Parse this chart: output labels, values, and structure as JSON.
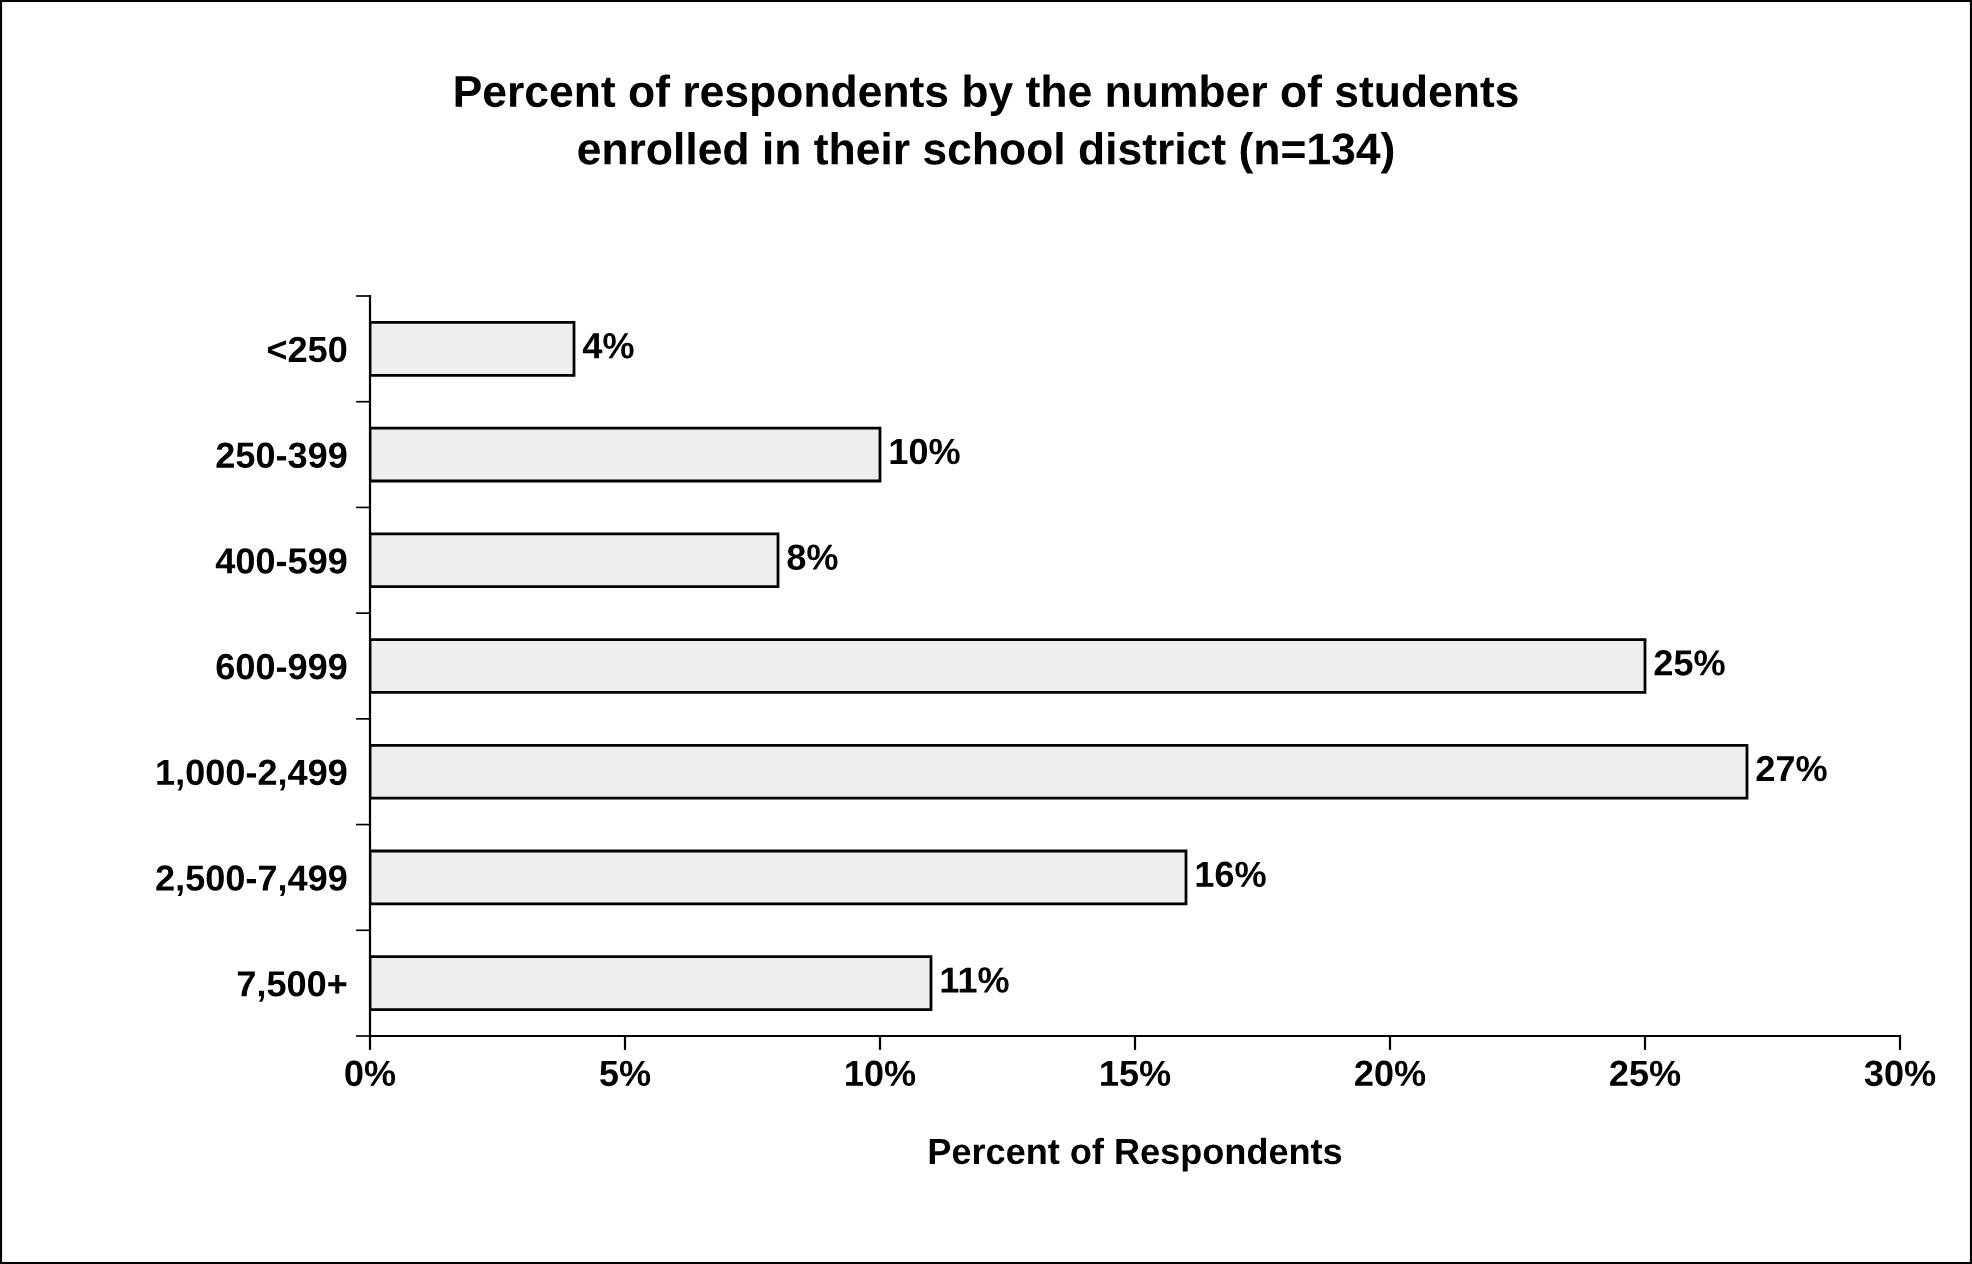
{
  "chart_data": {
    "type": "bar",
    "orientation": "horizontal",
    "title": "Percent of respondents by the number of students\nenrolled in their school district (n=134)",
    "xlabel": "Percent of Respondents",
    "categories": [
      "<250",
      "250-399",
      "400-599",
      "600-999",
      "1,000-2,499",
      "2,500-7,499",
      "7,500+"
    ],
    "values": [
      4,
      10,
      8,
      25,
      27,
      16,
      11
    ],
    "color": "#eeeeee",
    "xlim": [
      0,
      30
    ],
    "xticks": [
      {
        "value": 0,
        "label": "0%"
      },
      {
        "value": 5,
        "label": "5%"
      },
      {
        "value": 10,
        "label": "10%"
      },
      {
        "value": 15,
        "label": "15%"
      },
      {
        "value": 20,
        "label": "20%"
      },
      {
        "value": 25,
        "label": "25%"
      },
      {
        "value": 30,
        "label": "30%"
      }
    ],
    "value_labels": [
      "4%",
      "10%",
      "8%",
      "25%",
      "27%",
      "16%",
      "11%"
    ],
    "grid": false,
    "legend": false
  }
}
